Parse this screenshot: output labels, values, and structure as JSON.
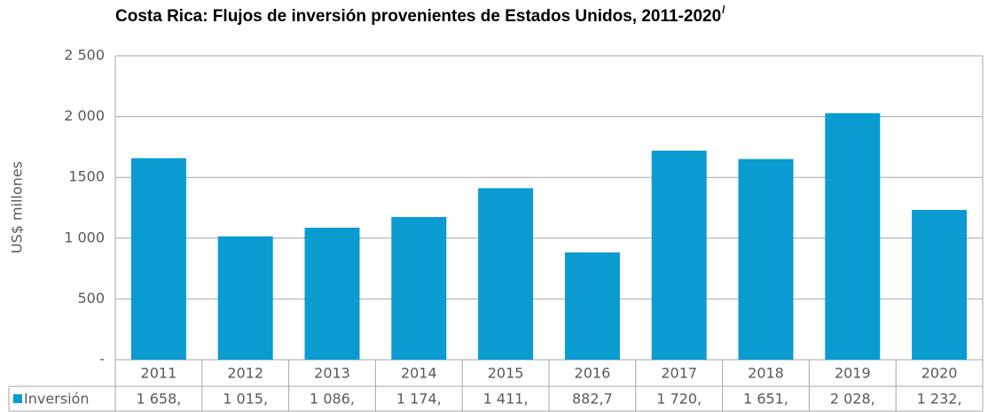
{
  "chart_data": {
    "type": "bar",
    "title": "Costa Rica: Flujos de inversión provenientes de Estados Unidos, 2011-2020",
    "title_note": "/",
    "y_label": "US$ millones",
    "categories": [
      "2011",
      "2012",
      "2013",
      "2014",
      "2015",
      "2016",
      "2017",
      "2018",
      "2019",
      "2020"
    ],
    "series": [
      {
        "name": "Inversión",
        "color": "#0a9bd0",
        "values": [
          1658,
          1015,
          1086,
          1174,
          1411,
          882.7,
          1720,
          1651,
          2028,
          1232
        ],
        "value_labels": [
          "1 658,",
          "1 015,",
          "1 086,",
          "1 174,",
          "1 411,",
          "882,7",
          "1 720,",
          "1 651,",
          "2 028,",
          "1 232,"
        ]
      }
    ],
    "ylim": [
      0,
      2500
    ],
    "yticks": [
      {
        "value": 0,
        "label": "-"
      },
      500,
      {
        "value": 1000,
        "label": "1 000"
      },
      1500,
      {
        "value": 2000,
        "label": "2 000"
      },
      {
        "value": 2500,
        "label": "2 500"
      }
    ],
    "grid": true
  }
}
